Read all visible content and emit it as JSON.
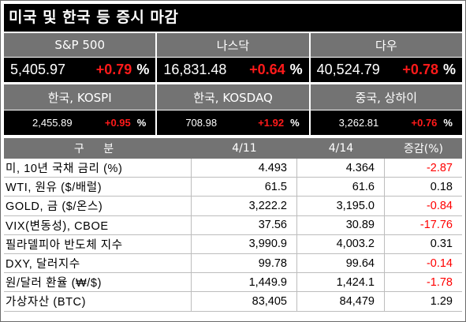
{
  "title": "미국 및 한국 등 증시 마감",
  "colors": {
    "header_bg": "#737373",
    "value_bg": "#000000",
    "up": "#ff1a1a",
    "down": "#ff0000"
  },
  "indices_top": [
    {
      "name": "S&P 500",
      "value": "5,405.97",
      "change": "+0.79",
      "unit": "%"
    },
    {
      "name": "나스닥",
      "value": "16,831.48",
      "change": "+0.64",
      "unit": "%"
    },
    {
      "name": "다우",
      "value": "40,524.79",
      "change": "+0.78",
      "unit": "%"
    }
  ],
  "indices_bottom": [
    {
      "name": "한국, KOSPI",
      "value": "2,455.89",
      "change": "+0.95",
      "unit": "%"
    },
    {
      "name": "한국, KOSDAQ",
      "value": "708.98",
      "change": "+1.92",
      "unit": "%"
    },
    {
      "name": "중국, 상하이",
      "value": "3,262.81",
      "change": "+0.76",
      "unit": "%"
    }
  ],
  "table": {
    "headers": [
      "구 분",
      "4/11",
      "4/14",
      "증감(%)"
    ],
    "rows": [
      {
        "label": "미, 10년 국채 금리 (%)",
        "d1": "4.493",
        "d2": "4.364",
        "chg": "-2.87",
        "neg": true
      },
      {
        "label": "WTI, 원유 ($/배럴)",
        "d1": "61.5",
        "d2": "61.6",
        "chg": "0.18",
        "neg": false
      },
      {
        "label": "GOLD, 금 ($/온스)",
        "d1": "3,222.2",
        "d2": "3,195.0",
        "chg": "-0.84",
        "neg": true
      },
      {
        "label": "VIX(변동성), CBOE",
        "d1": "37.56",
        "d2": "30.89",
        "chg": "-17.76",
        "neg": true
      },
      {
        "label": "필라델피아 반도체 지수",
        "d1": "3,990.9",
        "d2": "4,003.2",
        "chg": "0.31",
        "neg": false
      },
      {
        "label": "DXY, 달러지수",
        "d1": "99.78",
        "d2": "99.64",
        "chg": "-0.14",
        "neg": true
      },
      {
        "label": "원/달러 환율 (₩/$)",
        "d1": "1,449.9",
        "d2": "1,424.1",
        "chg": "-1.78",
        "neg": true
      },
      {
        "label": "가상자산 (BTC)",
        "d1": "83,405",
        "d2": "84,479",
        "chg": "1.29",
        "neg": false
      }
    ]
  }
}
